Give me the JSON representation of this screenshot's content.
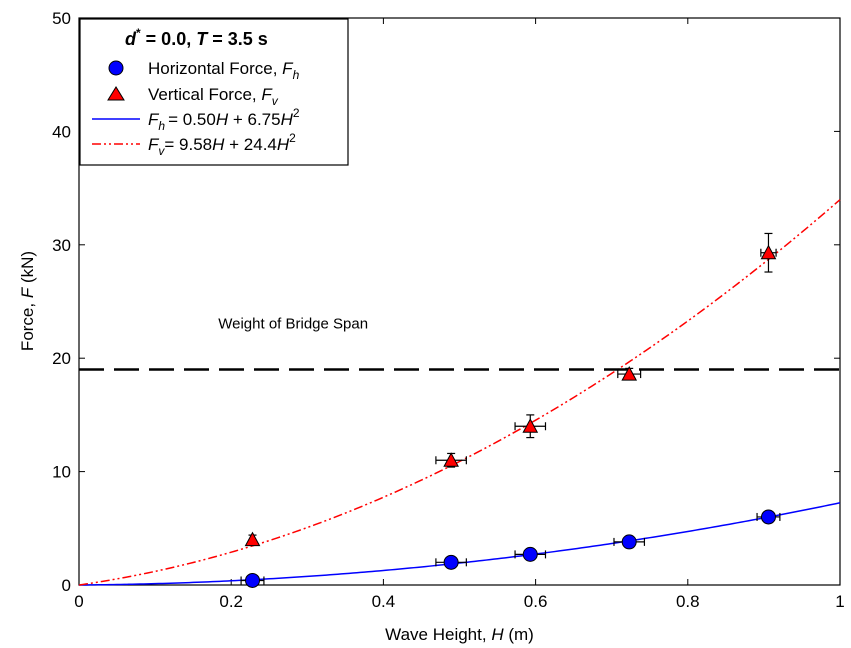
{
  "chart_data": {
    "type": "scatter",
    "xlabel": "Wave Height, ",
    "xlabel_var": "H",
    "xlabel_unit": " (m)",
    "ylabel": "Force, ",
    "ylabel_var": "F",
    "ylabel_unit": " (kN)",
    "xlim": [
      0,
      1
    ],
    "ylim": [
      0,
      50
    ],
    "xticks": [
      "0",
      "0.2",
      "0.4",
      "0.6",
      "0.8",
      "1"
    ],
    "yticks": [
      "0",
      "10",
      "20",
      "30",
      "40",
      "50"
    ],
    "grid": false,
    "legend_position": "top-left",
    "legend": {
      "title_d": "d",
      "title_star": "*",
      "title_rest": " = 0.0, ",
      "title_T": "T",
      "title_tail": " = 3.5 s",
      "horizontal_label": "Horizontal Force, ",
      "horizontal_sym": "F",
      "horizontal_sub": "h",
      "vertical_label": "Vertical Force, ",
      "vertical_sym": "F",
      "vertical_sub": "v",
      "fit_h_text": "= 0.50",
      "fit_h_mid": " + 6.75",
      "fit_h_exp": "2",
      "fit_v_text": "= 9.58",
      "fit_v_mid": " + 24.4",
      "fit_v_exp": "2",
      "var_H": "H"
    },
    "series": [
      {
        "name": "Horizontal Force, Fh",
        "marker": "circle",
        "color": "#0000ff",
        "points": [
          {
            "x": 0.228,
            "y": 0.4,
            "xerr": 0.015,
            "yerr": 0.1
          },
          {
            "x": 0.489,
            "y": 2.0,
            "xerr": 0.02,
            "yerr": 0.2
          },
          {
            "x": 0.593,
            "y": 2.7,
            "xerr": 0.02,
            "yerr": 0.2
          },
          {
            "x": 0.723,
            "y": 3.8,
            "xerr": 0.02,
            "yerr": 0.2
          },
          {
            "x": 0.906,
            "y": 6.0,
            "xerr": 0.015,
            "yerr": 0.3
          }
        ]
      },
      {
        "name": "Vertical Force, Fv",
        "marker": "triangle",
        "color": "#ff0000",
        "points": [
          {
            "x": 0.228,
            "y": 4.0,
            "xerr": 0.0,
            "yerr": 0.4
          },
          {
            "x": 0.489,
            "y": 11.0,
            "xerr": 0.02,
            "yerr": 0.6
          },
          {
            "x": 0.593,
            "y": 14.0,
            "xerr": 0.02,
            "yerr": 1.0
          },
          {
            "x": 0.723,
            "y": 18.6,
            "xerr": 0.015,
            "yerr": 0.5
          },
          {
            "x": 0.906,
            "y": 29.3,
            "xerr": 0.01,
            "yerr": 1.7
          }
        ]
      }
    ],
    "fits": [
      {
        "name": "Fh = 0.50H + 6.75H2",
        "a": 0.5,
        "b": 6.75,
        "color": "#0000ff",
        "style": "solid"
      },
      {
        "name": "Fv = 9.58H + 24.4H2",
        "a": 9.58,
        "b": 24.4,
        "color": "#ff0000",
        "style": "dash-dot-dot"
      }
    ],
    "reference_line": {
      "y": 19.0,
      "label": "Weight of Bridge Span",
      "style": "long-dash",
      "color": "#000000"
    }
  }
}
